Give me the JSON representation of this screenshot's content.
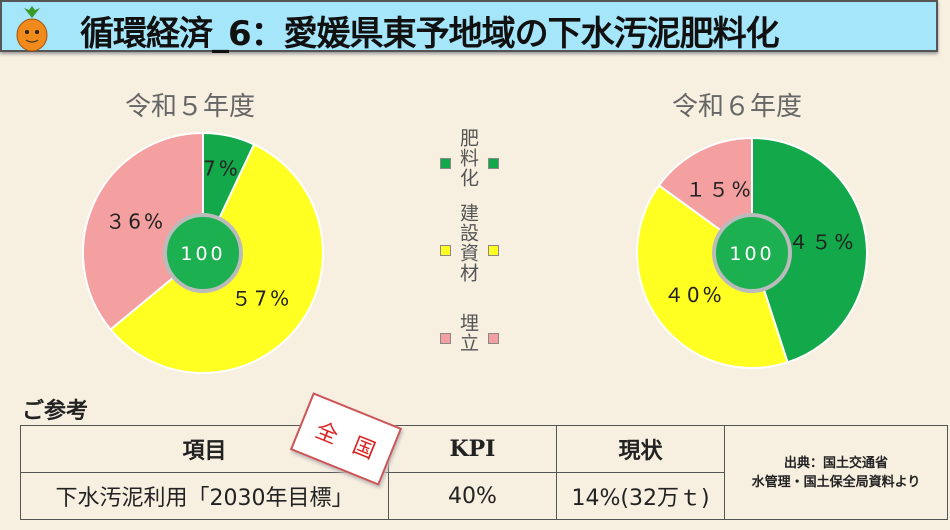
{
  "header": {
    "title": "循環経済_6：愛媛県東予地域の下水汚泥肥料化"
  },
  "colors": {
    "fertilizer": "#13a84a",
    "construction": "#ffff22",
    "landfill": "#f5a0a0",
    "center": "#1db050"
  },
  "legend": [
    {
      "label": "肥料化",
      "color": "#13a84a"
    },
    {
      "label": "建設資材",
      "color": "#ffff22"
    },
    {
      "label": "埋立",
      "color": "#f5a0a0"
    }
  ],
  "chart_data": [
    {
      "type": "pie",
      "title": "令和５年度",
      "categories": [
        "肥料化",
        "建設資材",
        "埋立"
      ],
      "values": [
        7,
        57,
        36
      ],
      "labels": [
        "7%",
        "５7%",
        "３6%"
      ],
      "center_label": "100"
    },
    {
      "type": "pie",
      "title": "令和６年度",
      "categories": [
        "肥料化",
        "建設資材",
        "埋立"
      ],
      "values": [
        45,
        40,
        15
      ],
      "labels": [
        "４５%",
        "４0%",
        "１５%"
      ],
      "center_label": "100"
    }
  ],
  "reference": {
    "heading": "ご参考",
    "stamp": [
      "全",
      "国"
    ],
    "headers": [
      "項目",
      "KPI",
      "現状"
    ],
    "row": [
      "下水汚泥利用「2030年目標」",
      "40%",
      "14%(32万ｔ)"
    ],
    "source": [
      "出典：国土交通省",
      "水管理・国土保全局資料より"
    ]
  }
}
